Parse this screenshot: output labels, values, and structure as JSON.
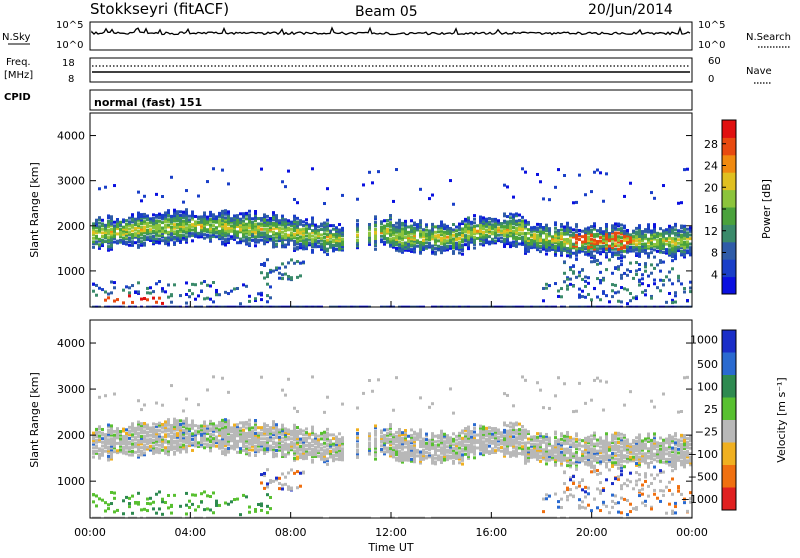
{
  "header": {
    "station": "Stokkseyri (fitACF)",
    "beam": "Beam 05",
    "date": "20/Jun/2014"
  },
  "nsky_panel": {
    "left_label": "N.Sky",
    "right_label": "N.Search",
    "ticks_left": [
      "10^5",
      "10^0"
    ],
    "ticks_right": [
      "10^5",
      "10^0"
    ]
  },
  "freq_panel": {
    "left_label_1": "Freq.",
    "left_label_2": "[MHz]",
    "ticks_left": [
      "18",
      "8"
    ],
    "right_label": "Nave",
    "ticks_right": [
      "60",
      "0"
    ]
  },
  "cpid": {
    "label": "CPID",
    "value": "normal (fast) 151"
  },
  "chart_data": [
    {
      "type": "heatmap",
      "name": "power",
      "ylabel": "Slant Range [km]",
      "xlabel": "",
      "ylim": [
        200,
        4500
      ],
      "yticks": [
        "1000",
        "2000",
        "3000",
        "4000"
      ],
      "colorbar_label": "Power [dB]",
      "colorbar_ticks": [
        "4",
        "8",
        "12",
        "16",
        "20",
        "24",
        "28"
      ],
      "colorbar_colors": [
        "#0a10e0",
        "#1a3fc8",
        "#2f5ca8",
        "#3a8a6a",
        "#4aa23c",
        "#8cc43c",
        "#e0c020",
        "#f08a10",
        "#e84a10",
        "#e01010"
      ]
    },
    {
      "type": "heatmap",
      "name": "velocity",
      "ylabel": "Slant Range [km]",
      "xlabel": "Time UT",
      "ylim": [
        200,
        4500
      ],
      "yticks": [
        "1000",
        "2000",
        "3000",
        "4000"
      ],
      "xticks": [
        "00:00",
        "04:00",
        "08:00",
        "12:00",
        "16:00",
        "20:00",
        "00:00"
      ],
      "colorbar_label": "Velocity [m s⁻¹]",
      "colorbar_ticks": [
        "1000",
        "500",
        "100",
        "25",
        "−25",
        "−100",
        "−500",
        "−1000"
      ],
      "colorbar_colors": [
        "#1a2ec8",
        "#2a6ad0",
        "#2e8a50",
        "#58c030",
        "#b8b8b8",
        "#f0b020",
        "#f07010",
        "#e02020"
      ]
    }
  ]
}
